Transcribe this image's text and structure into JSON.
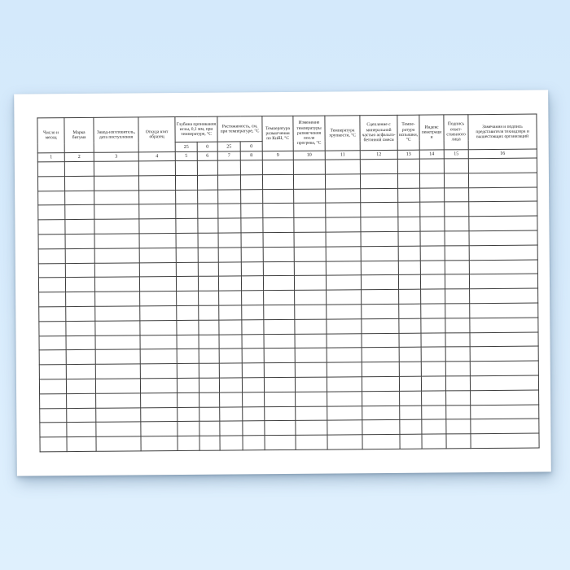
{
  "table": {
    "column_count": 16,
    "empty_row_count": 20,
    "header_columns": [
      {
        "num": "1",
        "label": "Число и месяц"
      },
      {
        "num": "2",
        "label": "Марка битума"
      },
      {
        "num": "3",
        "label": "Завод-изготовитель, дата поступления"
      },
      {
        "num": "4",
        "label": "Откуда взят образец"
      },
      {
        "group_label": "Глубина проникания иглы, 0,1 мм, при температуре, °С",
        "children": [
          {
            "num": "5",
            "label": "25"
          },
          {
            "num": "6",
            "label": "0"
          }
        ]
      },
      {
        "group_label": "Растяжимость, см, при температуре, °С",
        "children": [
          {
            "num": "7",
            "label": "25"
          },
          {
            "num": "8",
            "label": "0"
          }
        ]
      },
      {
        "num": "9",
        "label": "Темпе­ратура размяг­чения по КиШ, °С"
      },
      {
        "num": "10",
        "label": "Изменение температуры размягчения после прогрева, °С"
      },
      {
        "num": "11",
        "label": "Температура хрупкости, °С"
      },
      {
        "num": "12",
        "label": "Сцепление с минеральной частью асфальто-бетонной смеси"
      },
      {
        "num": "13",
        "label": "Темпе­ратура вспыш­ки, °С"
      },
      {
        "num": "14",
        "label": "Индекс пенетрации"
      },
      {
        "num": "15",
        "label": "Подпись ответ­ственного лица"
      },
      {
        "num": "16",
        "label": "Замечания и подпись представителя технадзора и вышестоящих организаций"
      }
    ]
  },
  "colors": {
    "background_top": "#d4e9fb",
    "background_bottom": "#dff0fd",
    "page": "#ffffff",
    "grid_line": "#3d3d3d",
    "text": "#1a1a1a"
  }
}
